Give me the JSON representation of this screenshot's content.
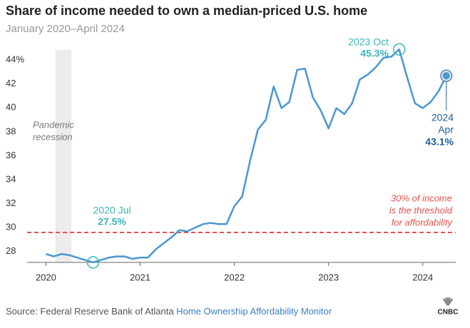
{
  "chart_data": {
    "type": "line",
    "title": "Share of income needed to own a median-priced U.S. home",
    "subtitle": "January 2020–April 2024",
    "source": "Source: Federal Reserve Bank of Atlanta",
    "source_link": "Home Ownership Affordability Monitor",
    "logo": "CNBC",
    "x": [
      2020,
      2020.083,
      2020.167,
      2020.25,
      2020.333,
      2020.417,
      2020.5,
      2020.583,
      2020.667,
      2020.75,
      2020.833,
      2020.917,
      2021,
      2021.083,
      2021.167,
      2021.25,
      2021.333,
      2021.417,
      2021.5,
      2021.583,
      2021.667,
      2021.75,
      2021.833,
      2021.917,
      2022,
      2022.083,
      2022.167,
      2022.25,
      2022.333,
      2022.417,
      2022.5,
      2022.583,
      2022.667,
      2022.75,
      2022.833,
      2022.917,
      2023,
      2023.083,
      2023.167,
      2023.25,
      2023.333,
      2023.417,
      2023.5,
      2023.583,
      2023.667,
      2023.75,
      2023.833,
      2023.917,
      2024,
      2024.083,
      2024.167,
      2024.25
    ],
    "series": [
      {
        "name": "Share of income",
        "color": "#4a97d1",
        "values": [
          28.2,
          28.0,
          28.2,
          28.1,
          27.9,
          27.7,
          27.5,
          27.7,
          27.9,
          28.0,
          28.0,
          27.8,
          27.9,
          27.9,
          28.6,
          29.1,
          29.6,
          30.2,
          30.1,
          30.4,
          30.7,
          30.8,
          30.7,
          30.7,
          32.2,
          33.0,
          36.0,
          38.6,
          39.4,
          42.2,
          40.4,
          40.9,
          43.6,
          43.7,
          41.3,
          40.2,
          38.7,
          40.4,
          39.9,
          40.8,
          42.8,
          43.2,
          43.8,
          44.6,
          44.7,
          45.3,
          43.0,
          40.8,
          40.4,
          40.9,
          41.8,
          43.1
        ]
      }
    ],
    "xlim": [
      2019.8,
      2024.35
    ],
    "ylim": [
      27.5,
      45.5
    ],
    "xticks": [
      2020,
      2021,
      2022,
      2023,
      2024
    ],
    "yticks": [
      28,
      30,
      32,
      34,
      36,
      38,
      40,
      42,
      {
        "value": 44,
        "label": "44%"
      }
    ],
    "grid": false,
    "recession": {
      "label": [
        "Pandemic",
        "recession"
      ],
      "range": [
        2020.1,
        2020.27
      ]
    },
    "threshold": {
      "value": 30,
      "color": "#e8524f",
      "label": [
        "30% of income",
        "is the threshold",
        "for affordability"
      ]
    },
    "annotations": [
      {
        "label": [
          "2020 Jul"
        ],
        "x": 2020.5,
        "value": 27.5,
        "value_label": "27.5%",
        "color": "#3bb5b5"
      },
      {
        "label": [
          "2023 Oct"
        ],
        "x": 2023.75,
        "value": 45.3,
        "value_label": "45.3%",
        "color": "#3bb5b5"
      },
      {
        "label": [
          "2024",
          "Apr"
        ],
        "x": 2024.25,
        "value": 43.1,
        "value_label": "43.1%",
        "color": "#1f5fa0"
      }
    ]
  }
}
